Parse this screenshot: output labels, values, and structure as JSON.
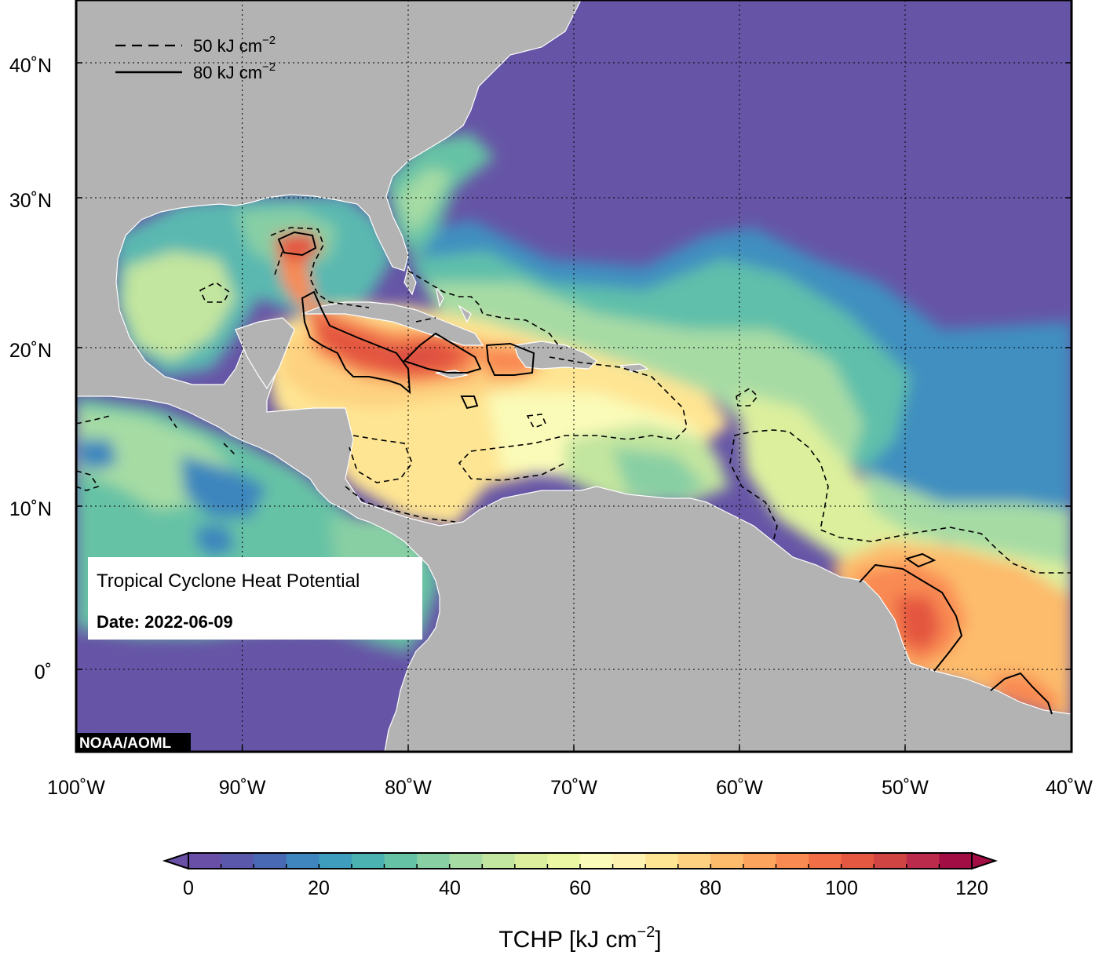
{
  "map": {
    "title": "Tropical Cyclone Heat Potential",
    "date_label": "Date: 2022-06-09",
    "credit": "NOAA/AOML",
    "lon_ticks": [
      "100˚W",
      "90˚W",
      "80˚W",
      "70˚W",
      "60˚W",
      "50˚W",
      "40˚W"
    ],
    "lat_ticks": [
      "40˚N",
      "30˚N",
      "20˚N",
      "10˚N",
      "0˚"
    ],
    "legend": {
      "dashed": "50 kJ cm",
      "solid": "80 kJ cm",
      "exponent": "−2"
    }
  },
  "colorbar": {
    "tick_labels": [
      "0",
      "20",
      "40",
      "60",
      "80",
      "100",
      "120"
    ],
    "label": "TCHP [kJ cm",
    "label_exponent": "−2",
    "label_close": "]",
    "colors": [
      "#6a4fa6",
      "#5a58ab",
      "#4a69b5",
      "#3e86bd",
      "#3e9cbc",
      "#4cb1b1",
      "#66c2a5",
      "#88cfa4",
      "#a6dba4",
      "#c2e59f",
      "#dbef9d",
      "#ecf7a4",
      "#fafbb8",
      "#fff3b2",
      "#fee593",
      "#fdd17f",
      "#fdbb6c",
      "#fca35e",
      "#f98a52",
      "#f26e46",
      "#e45741",
      "#d14444",
      "#bb2c4c",
      "#a20e44"
    ]
  },
  "colors": {
    "land": "#b3b3b3",
    "deep_ocean": "#6655a6",
    "coast": "#ffffff"
  }
}
